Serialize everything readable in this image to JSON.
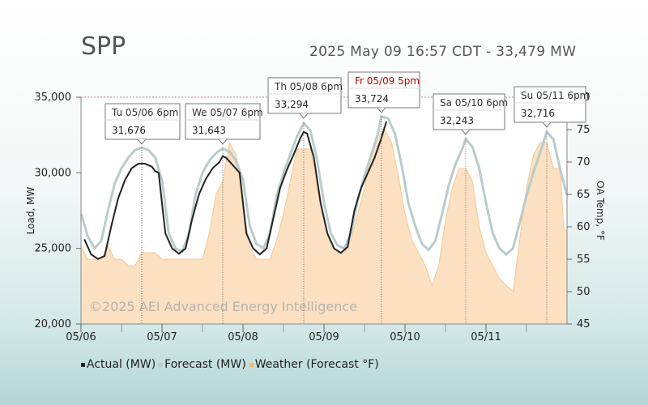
{
  "region": "SPP",
  "status_line": "2025 May 09 16:57 CDT - 33,479 MW",
  "watermark": "©2025 AEI Advanced Energy Intelligence",
  "legend": [
    {
      "label": "Actual (MW)",
      "color": "#222222"
    },
    {
      "label": "Forecast (MW)",
      "color": "#b9cccc"
    },
    {
      "label": "Weather (Forecast °F)",
      "color": "#f5b26b"
    }
  ],
  "peak_labels": [
    {
      "day": "Tu 05/06 6pm",
      "value": "31,676",
      "highlight": false
    },
    {
      "day": "We 05/07 6pm",
      "value": "31,643",
      "highlight": false
    },
    {
      "day": "Th 05/08 6pm",
      "value": "33,294",
      "highlight": false
    },
    {
      "day": "Fr 05/09 5pm",
      "value": "33,724",
      "highlight": true
    },
    {
      "day": "Sa 05/10 6pm",
      "value": "32,243",
      "highlight": false
    },
    {
      "day": "Su 05/11 6pm",
      "value": "32,716",
      "highlight": false
    }
  ],
  "chart_data": {
    "type": "line",
    "ylabel": "Load, MW",
    "y2label": "OA Temp, °F",
    "ylim": [
      20000,
      35000
    ],
    "y2lim": [
      45,
      80
    ],
    "yticks": [
      "20,000",
      "25,000",
      "30,000",
      "35,000"
    ],
    "y2ticks": [
      "45",
      "50",
      "55",
      "60",
      "65",
      "70",
      "75",
      "80"
    ],
    "xticks": [
      "05/06",
      "05/07",
      "05/08",
      "05/09",
      "05/10",
      "05/11"
    ],
    "x_unit": "hours from 05/06 00:00",
    "series": [
      {
        "name": "Actual (MW)",
        "color": "#222222",
        "points": [
          [
            1,
            25600
          ],
          [
            3,
            24600
          ],
          [
            5,
            24300
          ],
          [
            7,
            24500
          ],
          [
            9,
            26500
          ],
          [
            11,
            28300
          ],
          [
            13,
            29500
          ],
          [
            15,
            30300
          ],
          [
            17,
            30600
          ],
          [
            19,
            30600
          ],
          [
            21,
            30400
          ],
          [
            22,
            30100
          ],
          [
            23,
            30000
          ],
          [
            25,
            26000
          ],
          [
            27,
            25000
          ],
          [
            29,
            24650
          ],
          [
            31,
            25000
          ],
          [
            33,
            27000
          ],
          [
            35,
            28600
          ],
          [
            37,
            29600
          ],
          [
            39,
            30300
          ],
          [
            41,
            30700
          ],
          [
            42,
            31100
          ],
          [
            43,
            31000
          ],
          [
            45,
            30500
          ],
          [
            47,
            30000
          ],
          [
            49,
            26000
          ],
          [
            51,
            25000
          ],
          [
            53,
            24600
          ],
          [
            55,
            25000
          ],
          [
            57,
            27000
          ],
          [
            59,
            29000
          ],
          [
            61,
            30200
          ],
          [
            63,
            31200
          ],
          [
            65,
            32300
          ],
          [
            66,
            32700
          ],
          [
            67,
            32600
          ],
          [
            69,
            31000
          ],
          [
            71,
            28000
          ],
          [
            73,
            26000
          ],
          [
            75,
            25000
          ],
          [
            77,
            24700
          ],
          [
            79,
            25100
          ],
          [
            81,
            27500
          ],
          [
            83,
            29000
          ],
          [
            85,
            30000
          ],
          [
            87,
            31000
          ],
          [
            89,
            32300
          ],
          [
            90.5,
            33400
          ]
        ]
      },
      {
        "name": "Forecast (MW)",
        "color": "#b9cccc",
        "points": [
          [
            0,
            27300
          ],
          [
            2,
            25800
          ],
          [
            4,
            25000
          ],
          [
            6,
            25500
          ],
          [
            8,
            27500
          ],
          [
            10,
            29300
          ],
          [
            12,
            30300
          ],
          [
            14,
            31000
          ],
          [
            16,
            31500
          ],
          [
            18,
            31676
          ],
          [
            20,
            31500
          ],
          [
            22,
            31000
          ],
          [
            24,
            29500
          ],
          [
            26,
            26000
          ],
          [
            28,
            25000
          ],
          [
            30,
            24800
          ],
          [
            32,
            26000
          ],
          [
            34,
            28600
          ],
          [
            36,
            30000
          ],
          [
            38,
            30800
          ],
          [
            40,
            31300
          ],
          [
            42,
            31600
          ],
          [
            44,
            31400
          ],
          [
            46,
            30800
          ],
          [
            48,
            29500
          ],
          [
            50,
            26500
          ],
          [
            52,
            25300
          ],
          [
            54,
            25000
          ],
          [
            56,
            26000
          ],
          [
            58,
            28500
          ],
          [
            60,
            30000
          ],
          [
            62,
            31200
          ],
          [
            64,
            32400
          ],
          [
            66,
            33294
          ],
          [
            68,
            32800
          ],
          [
            70,
            30800
          ],
          [
            72,
            28000
          ],
          [
            74,
            26000
          ],
          [
            76,
            25200
          ],
          [
            78,
            25000
          ],
          [
            80,
            26000
          ],
          [
            82,
            28200
          ],
          [
            84,
            29800
          ],
          [
            86,
            31200
          ],
          [
            88,
            32600
          ],
          [
            89,
            33724
          ],
          [
            91,
            33600
          ],
          [
            93,
            32600
          ],
          [
            95,
            30500
          ],
          [
            97,
            28000
          ],
          [
            99,
            26500
          ],
          [
            101,
            25300
          ],
          [
            103,
            24900
          ],
          [
            105,
            25500
          ],
          [
            107,
            27300
          ],
          [
            109,
            29200
          ],
          [
            111,
            30600
          ],
          [
            113,
            31600
          ],
          [
            114,
            32243
          ],
          [
            116,
            31700
          ],
          [
            118,
            30300
          ],
          [
            120,
            28000
          ],
          [
            122,
            26000
          ],
          [
            124,
            25000
          ],
          [
            126,
            24600
          ],
          [
            128,
            25000
          ],
          [
            130,
            26700
          ],
          [
            132,
            28500
          ],
          [
            134,
            30000
          ],
          [
            136,
            31300
          ],
          [
            138,
            32716
          ],
          [
            140,
            32200
          ],
          [
            142,
            30200
          ],
          [
            144,
            28500
          ]
        ]
      },
      {
        "name": "Weather (Forecast °F)",
        "color": "#f5b26b",
        "points": [
          [
            0,
            57
          ],
          [
            2,
            55
          ],
          [
            4,
            55
          ],
          [
            6,
            55
          ],
          [
            8,
            57
          ],
          [
            10,
            55
          ],
          [
            12,
            55
          ],
          [
            14,
            54
          ],
          [
            16,
            54
          ],
          [
            18,
            56
          ],
          [
            20,
            56
          ],
          [
            22,
            56
          ],
          [
            24,
            55
          ],
          [
            26,
            55
          ],
          [
            28,
            55
          ],
          [
            30,
            55
          ],
          [
            32,
            55
          ],
          [
            34,
            55
          ],
          [
            36,
            55
          ],
          [
            38,
            59
          ],
          [
            40,
            65
          ],
          [
            42,
            67
          ],
          [
            44,
            73
          ],
          [
            46,
            71
          ],
          [
            48,
            63
          ],
          [
            50,
            57
          ],
          [
            52,
            55
          ],
          [
            54,
            55
          ],
          [
            56,
            55
          ],
          [
            58,
            58
          ],
          [
            60,
            62
          ],
          [
            62,
            67
          ],
          [
            64,
            72
          ],
          [
            66,
            72
          ],
          [
            68,
            72
          ],
          [
            70,
            66
          ],
          [
            72,
            61
          ],
          [
            74,
            57
          ],
          [
            76,
            56
          ],
          [
            78,
            56
          ],
          [
            80,
            58
          ],
          [
            82,
            62
          ],
          [
            84,
            66
          ],
          [
            86,
            71
          ],
          [
            88,
            74
          ],
          [
            90,
            75
          ],
          [
            92,
            73
          ],
          [
            94,
            68
          ],
          [
            96,
            62
          ],
          [
            98,
            58
          ],
          [
            100,
            56
          ],
          [
            102,
            54
          ],
          [
            104,
            51
          ],
          [
            106,
            54
          ],
          [
            108,
            61
          ],
          [
            110,
            66
          ],
          [
            112,
            69
          ],
          [
            114,
            69
          ],
          [
            116,
            67
          ],
          [
            118,
            60
          ],
          [
            120,
            56
          ],
          [
            122,
            54
          ],
          [
            124,
            52
          ],
          [
            126,
            51
          ],
          [
            128,
            50
          ],
          [
            130,
            58
          ],
          [
            132,
            66
          ],
          [
            134,
            71
          ],
          [
            136,
            73
          ],
          [
            138,
            73
          ],
          [
            140,
            69
          ],
          [
            142,
            69
          ],
          [
            143,
            60
          ],
          [
            144,
            59
          ]
        ]
      }
    ],
    "grid": false
  }
}
